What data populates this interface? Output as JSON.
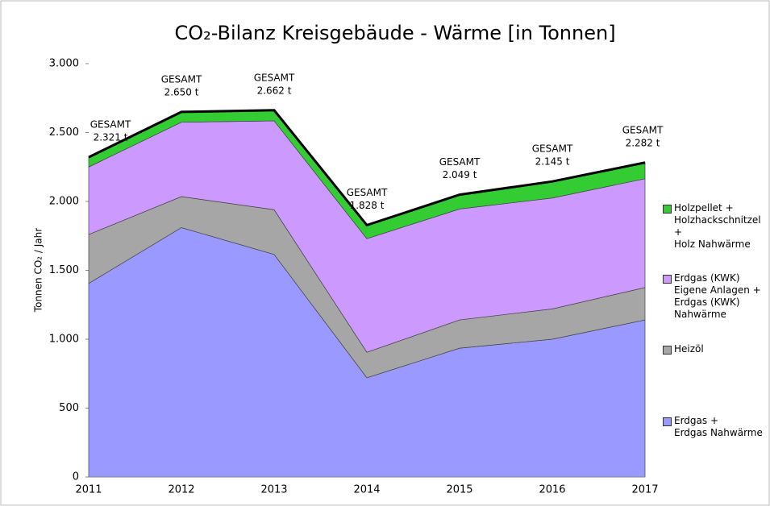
{
  "chart_data": {
    "type": "stacked_area",
    "title": "CO₂-Bilanz Kreisgebäude - Wärme [in Tonnen]",
    "y_label": "Tonnen CO₂ / Jahr",
    "categories": [
      "2011",
      "2012",
      "2013",
      "2014",
      "2015",
      "2016",
      "2017"
    ],
    "series": [
      {
        "name": "Erdgas +\nErdgas Nahwärme",
        "color": "#9999ff",
        "values": [
          1405,
          1810,
          1615,
          720,
          935,
          1000,
          1140
        ]
      },
      {
        "name": "Heizöl",
        "color": "#a6a6a6",
        "values": [
          355,
          225,
          325,
          185,
          205,
          220,
          235
        ]
      },
      {
        "name": "Erdgas (KWK)\nEigene Anlagen +\nErdgas (KWK)\nNahwärme",
        "color": "#cc99ff",
        "values": [
          490,
          540,
          645,
          825,
          805,
          805,
          790
        ]
      },
      {
        "name": "Holzpellet +\nHolzhackschnitzel +\nHolz Nahwärme",
        "color": "#33cc33",
        "values": [
          71,
          75,
          77,
          98,
          104,
          120,
          117
        ]
      }
    ],
    "totals": [
      2321,
      2650,
      2662,
      1828,
      2049,
      2145,
      2282
    ],
    "total_caption": "GESAMT",
    "value_labels": [
      "2.321 t",
      "2.650 t",
      "2.662 t",
      "1.828 t",
      "2.049 t",
      "2.145 t",
      "2.282 t"
    ],
    "ylim": [
      0,
      3000
    ],
    "yticks": [
      0,
      500,
      {
        "value": 1000,
        "label": "1.000"
      },
      {
        "value": 1500,
        "label": "1.500"
      },
      {
        "value": 2000,
        "label": "2.000"
      },
      {
        "value": 2500,
        "label": "2.500"
      },
      {
        "value": 3000,
        "label": "3.000"
      }
    ],
    "legend": "right"
  }
}
